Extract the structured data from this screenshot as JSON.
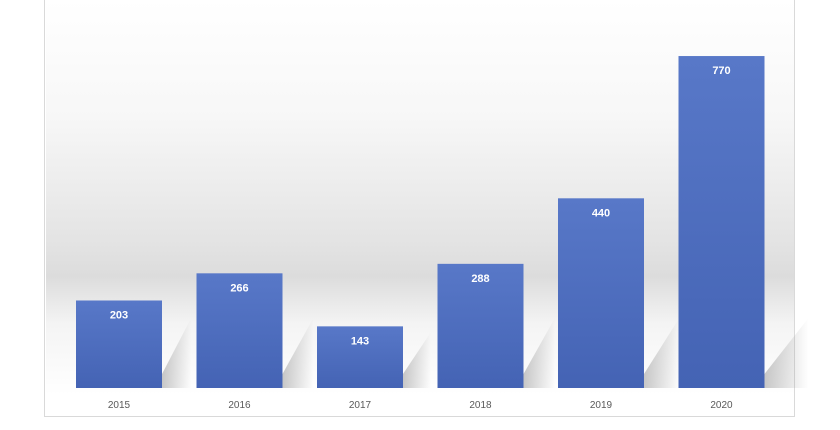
{
  "chart_data": {
    "type": "bar",
    "categories": [
      "2015",
      "2016",
      "2017",
      "2018",
      "2019",
      "2020"
    ],
    "values": [
      203,
      266,
      143,
      288,
      440,
      770
    ],
    "data_labels": [
      "203",
      "266",
      "143",
      "288",
      "440",
      "770"
    ],
    "title": "",
    "xlabel": "",
    "ylabel": "",
    "ylim": [
      0,
      900
    ],
    "grid": false,
    "legend": "none",
    "colors": {
      "bar_top": "#5878C8",
      "bar_bottom": "#4463B4",
      "tick_label": "#595959",
      "data_label": "#FFFFFF",
      "frame_border": "#D9D9D9"
    }
  }
}
